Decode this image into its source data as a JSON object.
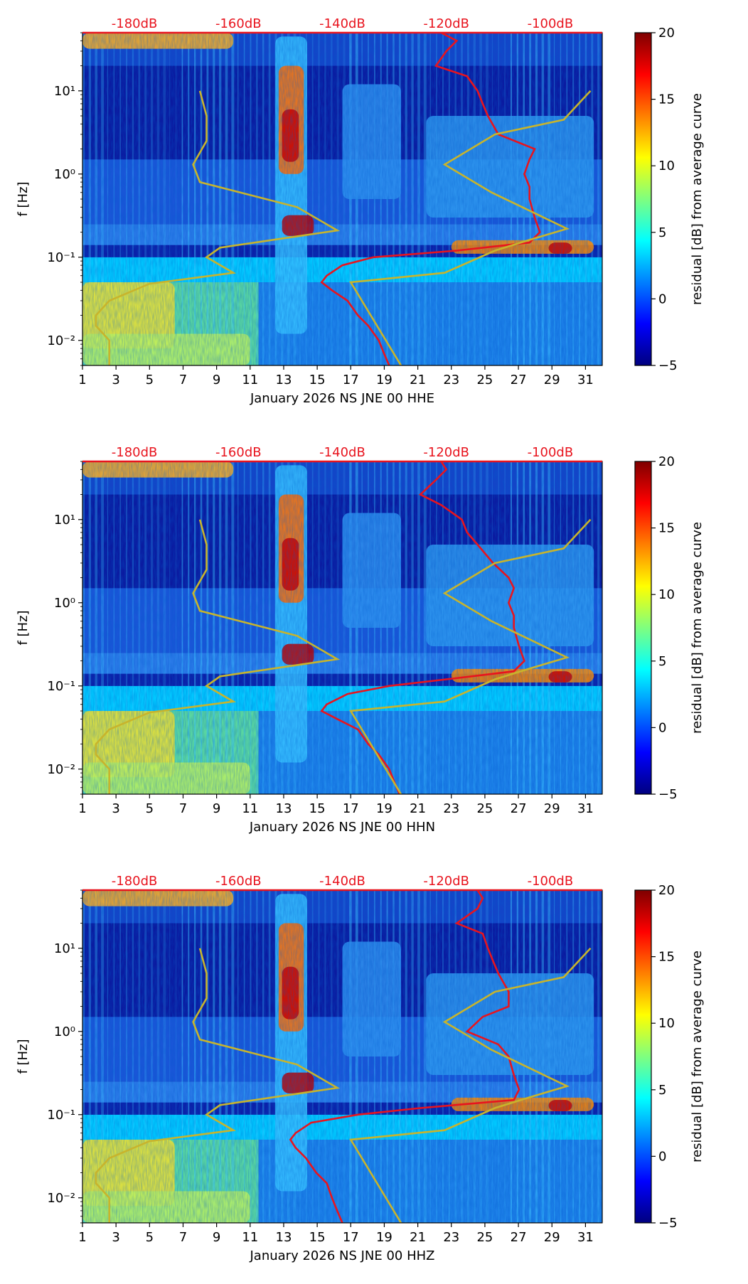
{
  "colors": {
    "noise_model": "#c8b42c",
    "psd_curve": "#e8141e",
    "db_labels": "#e8141e",
    "axis": "#000000"
  },
  "colormap": {
    "name": "jet",
    "stops": [
      "#00007f",
      "#0000ff",
      "#007fff",
      "#00ffff",
      "#7fff7f",
      "#ffff00",
      "#ff7f00",
      "#ff0000",
      "#7f0000"
    ]
  },
  "chart_data": [
    {
      "type": "heatmap",
      "xlabel": "January 2026 NS JNE 00 HHE",
      "ylabel": "f [Hz]",
      "x_tick_labels": [
        "1",
        "3",
        "5",
        "7",
        "9",
        "11",
        "13",
        "15",
        "17",
        "19",
        "21",
        "23",
        "25",
        "27",
        "29",
        "31"
      ],
      "xlim": [
        1,
        32
      ],
      "ylim": [
        0.005,
        50
      ],
      "y_scale": "log",
      "y_tick_labels": [
        "10⁻²",
        "10⁻¹",
        "10⁰",
        "10¹"
      ],
      "top_tick_labels": [
        "-180dB",
        "-160dB",
        "-140dB",
        "-120dB",
        "-100dB"
      ],
      "top_axis_range_dB": [
        -190,
        -90
      ],
      "colorbar": {
        "label": "residual [dB] from average curve",
        "min": -5,
        "max": 20,
        "tick_labels": [
          "20",
          "15",
          "10",
          "5",
          "0",
          "−5"
        ]
      },
      "noise_model": {
        "name": "yellow noise-model curves",
        "values": []
      },
      "psd_curve": {
        "name": "red average PSD curve (dB)",
        "points": [
          [
            50,
            -121
          ],
          [
            40,
            -118
          ],
          [
            30,
            -120
          ],
          [
            20,
            -122
          ],
          [
            15,
            -116
          ],
          [
            10,
            -114
          ],
          [
            7,
            -113
          ],
          [
            5,
            -112
          ],
          [
            3,
            -110
          ],
          [
            2,
            -103
          ],
          [
            1.5,
            -104
          ],
          [
            1,
            -105
          ],
          [
            0.7,
            -104
          ],
          [
            0.5,
            -104
          ],
          [
            0.3,
            -103
          ],
          [
            0.2,
            -102
          ],
          [
            0.15,
            -104
          ],
          [
            0.12,
            -118
          ],
          [
            0.1,
            -134
          ],
          [
            0.08,
            -140
          ],
          [
            0.06,
            -143
          ],
          [
            0.05,
            -144
          ],
          [
            0.04,
            -142
          ],
          [
            0.03,
            -139
          ],
          [
            0.02,
            -137
          ],
          [
            0.015,
            -135
          ],
          [
            0.01,
            -133
          ],
          [
            0.007,
            -132
          ],
          [
            0.005,
            -131
          ]
        ]
      }
    },
    {
      "type": "heatmap",
      "xlabel": "January 2026 NS JNE 00 HHN",
      "ylabel": "f [Hz]",
      "x_tick_labels": [
        "1",
        "3",
        "5",
        "7",
        "9",
        "11",
        "13",
        "15",
        "17",
        "19",
        "21",
        "23",
        "25",
        "27",
        "29",
        "31"
      ],
      "xlim": [
        1,
        32
      ],
      "ylim": [
        0.005,
        50
      ],
      "y_scale": "log",
      "y_tick_labels": [
        "10⁻²",
        "10⁻¹",
        "10⁰",
        "10¹"
      ],
      "top_tick_labels": [
        "-180dB",
        "-160dB",
        "-140dB",
        "-120dB",
        "-100dB"
      ],
      "top_axis_range_dB": [
        -190,
        -90
      ],
      "colorbar": {
        "label": "residual [dB] from average curve",
        "min": -5,
        "max": 20,
        "tick_labels": [
          "20",
          "15",
          "10",
          "5",
          "0",
          "−5"
        ]
      },
      "noise_model": {
        "name": "yellow noise-model curves",
        "values": []
      },
      "psd_curve": {
        "name": "red average PSD curve (dB)",
        "points": [
          [
            50,
            -121
          ],
          [
            40,
            -120
          ],
          [
            30,
            -122
          ],
          [
            20,
            -125
          ],
          [
            15,
            -121
          ],
          [
            10,
            -117
          ],
          [
            7,
            -116
          ],
          [
            5,
            -114
          ],
          [
            3,
            -111
          ],
          [
            2,
            -108
          ],
          [
            1.5,
            -107
          ],
          [
            1,
            -108
          ],
          [
            0.7,
            -107
          ],
          [
            0.5,
            -107
          ],
          [
            0.3,
            -106
          ],
          [
            0.2,
            -105
          ],
          [
            0.15,
            -107
          ],
          [
            0.12,
            -120
          ],
          [
            0.1,
            -131
          ],
          [
            0.08,
            -139
          ],
          [
            0.06,
            -143
          ],
          [
            0.05,
            -144
          ],
          [
            0.04,
            -141
          ],
          [
            0.03,
            -137
          ],
          [
            0.02,
            -135
          ],
          [
            0.015,
            -133
          ],
          [
            0.01,
            -131
          ],
          [
            0.007,
            -130
          ],
          [
            0.005,
            -129
          ]
        ]
      }
    },
    {
      "type": "heatmap",
      "xlabel": "January 2026 NS JNE 00 HHZ",
      "ylabel": "f [Hz]",
      "x_tick_labels": [
        "1",
        "3",
        "5",
        "7",
        "9",
        "11",
        "13",
        "15",
        "17",
        "19",
        "21",
        "23",
        "25",
        "27",
        "29",
        "31"
      ],
      "xlim": [
        1,
        32
      ],
      "ylim": [
        0.005,
        50
      ],
      "y_scale": "log",
      "y_tick_labels": [
        "10⁻²",
        "10⁻¹",
        "10⁰",
        "10¹"
      ],
      "top_tick_labels": [
        "-180dB",
        "-160dB",
        "-140dB",
        "-120dB",
        "-100dB"
      ],
      "top_axis_range_dB": [
        -190,
        -90
      ],
      "colorbar": {
        "label": "residual [dB] from average curve",
        "min": -5,
        "max": 20,
        "tick_labels": [
          "20",
          "15",
          "10",
          "5",
          "0",
          "−5"
        ]
      },
      "noise_model": {
        "name": "yellow noise-model curves",
        "values": []
      },
      "psd_curve": {
        "name": "red average PSD curve (dB)",
        "points": [
          [
            50,
            -114
          ],
          [
            40,
            -113
          ],
          [
            30,
            -114
          ],
          [
            20,
            -118
          ],
          [
            15,
            -113
          ],
          [
            10,
            -112
          ],
          [
            7,
            -111
          ],
          [
            5,
            -110
          ],
          [
            3,
            -108
          ],
          [
            2,
            -108
          ],
          [
            1.5,
            -113
          ],
          [
            1,
            -116
          ],
          [
            0.7,
            -110
          ],
          [
            0.5,
            -108
          ],
          [
            0.3,
            -107
          ],
          [
            0.2,
            -106
          ],
          [
            0.15,
            -107
          ],
          [
            0.12,
            -125
          ],
          [
            0.1,
            -137
          ],
          [
            0.08,
            -146
          ],
          [
            0.06,
            -149
          ],
          [
            0.05,
            -150
          ],
          [
            0.04,
            -149
          ],
          [
            0.03,
            -147
          ],
          [
            0.02,
            -145
          ],
          [
            0.015,
            -143
          ],
          [
            0.01,
            -142
          ],
          [
            0.007,
            -141
          ],
          [
            0.005,
            -140
          ]
        ]
      }
    }
  ]
}
